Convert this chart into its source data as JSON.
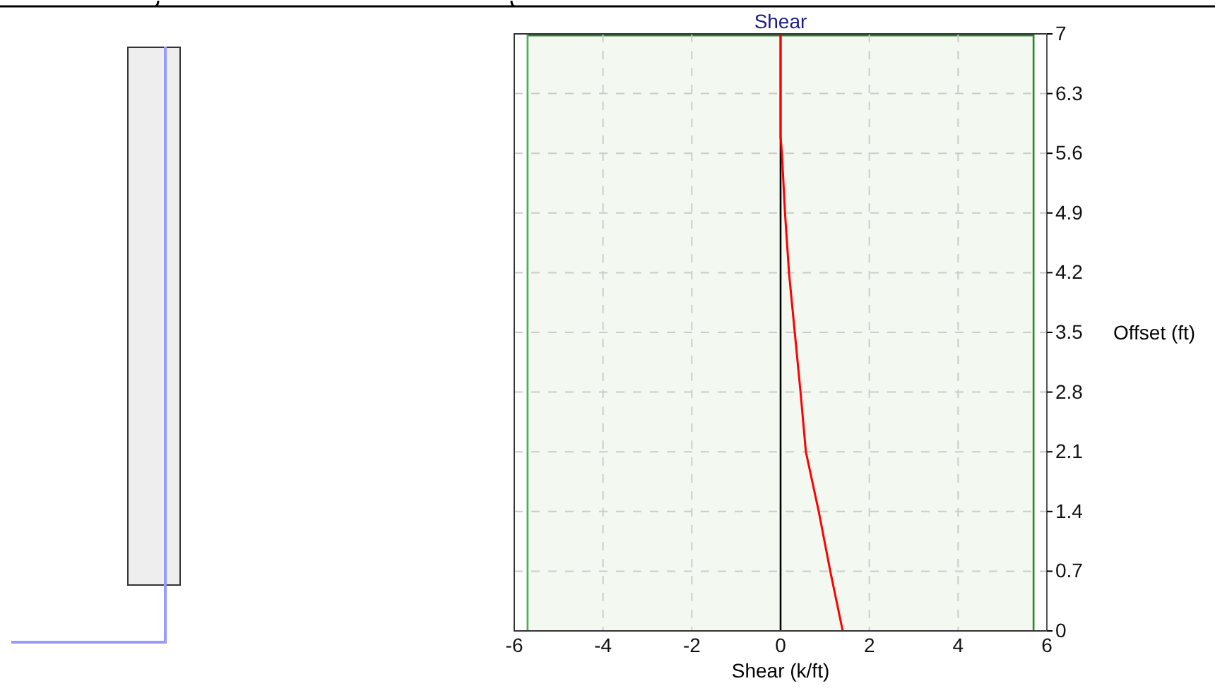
{
  "chart_data": {
    "type": "line",
    "title": "Shear",
    "xlabel": "Shear (k/ft)",
    "ylabel": "Offset (ft)",
    "series": [
      {
        "color": "#ff0000",
        "x": [
          1.4,
          1.12,
          0.86,
          0.57,
          0.45,
          0.32,
          0.19,
          0.1,
          0.03,
          0,
          0
        ],
        "values": [
          0,
          0.7,
          1.4,
          2.1,
          2.8,
          3.5,
          4.2,
          4.9,
          5.6,
          5.8,
          7
        ]
      }
    ],
    "xlim": [
      -6,
      6
    ],
    "xticks": [
      -6,
      -4,
      -2,
      0,
      2,
      4,
      6
    ],
    "ylim": [
      0,
      7
    ],
    "yticks": [
      0,
      0.7,
      1.4,
      2.1,
      2.8,
      3.5,
      4.2,
      4.9,
      5.6,
      6.3,
      7
    ],
    "ref_lines": [
      {
        "axis": "x",
        "value": -5.7,
        "color": "#4caf50"
      },
      {
        "axis": "x",
        "value": 5.7,
        "color": "#228b22"
      },
      {
        "axis": "x",
        "value": 0,
        "color": "#000000"
      }
    ],
    "bands": [
      {
        "axis": "x",
        "from": -5.7,
        "to": 5.7,
        "color": "#f3f8f1"
      }
    ],
    "grid": true,
    "marker": "none",
    "line_style": "solid"
  }
}
